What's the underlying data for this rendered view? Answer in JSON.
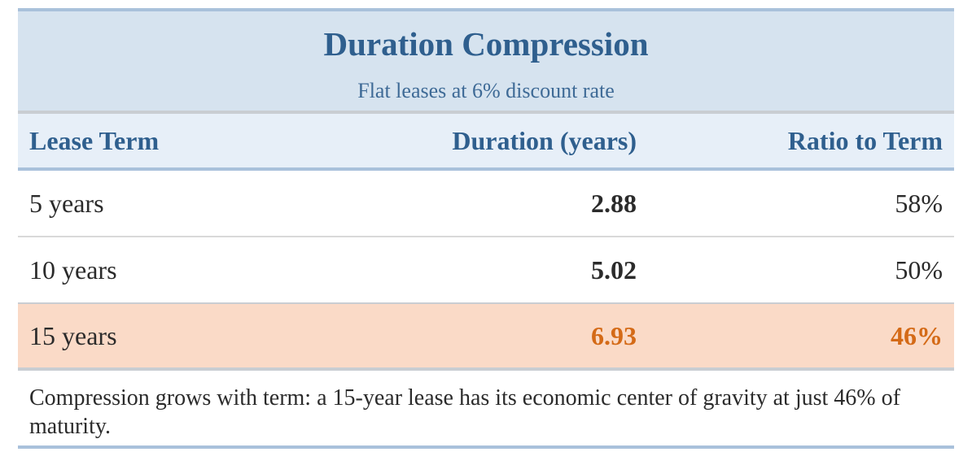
{
  "table": {
    "title": "Duration Compression",
    "subtitle": "Flat leases at 6% discount rate",
    "headers": [
      "Lease Term",
      "Duration (years)",
      "Ratio to Term"
    ],
    "rows": [
      {
        "term": "5 years",
        "duration": "2.88",
        "ratio": "58%"
      },
      {
        "term": "10 years",
        "duration": "5.02",
        "ratio": "50%"
      },
      {
        "term": "15 years",
        "duration": "6.93",
        "ratio": "46%"
      }
    ],
    "footnote": "Compression grows with term: a 15-year lease has its economic center of gravity at just 46% of maturity.",
    "colors": {
      "title": "#2f5f8e",
      "header_band": "#d6e3ef",
      "highlight_row": "#fadac7",
      "accent": "#d46a17"
    }
  }
}
